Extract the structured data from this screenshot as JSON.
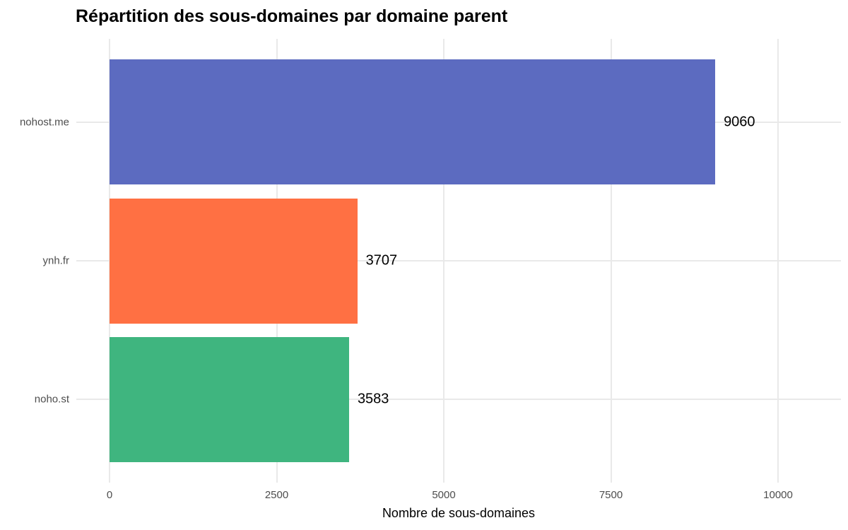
{
  "chart_data": {
    "type": "bar",
    "orientation": "horizontal",
    "title": "Répartition des sous-domaines par domaine parent",
    "xlabel": "Nombre de sous-domaines",
    "ylabel": "",
    "categories": [
      "nohost.me",
      "ynh.fr",
      "noho.st"
    ],
    "values": [
      9060,
      3707,
      3583
    ],
    "value_labels": [
      "9060",
      "3707",
      "3583"
    ],
    "colors": [
      "#5c6bc0",
      "#ff7043",
      "#3fb57f"
    ],
    "xlim": [
      0,
      10000
    ],
    "xticks": [
      0,
      2500,
      5000,
      7500,
      10000
    ],
    "xtick_labels": [
      "0",
      "2500",
      "5000",
      "7500",
      "10000"
    ],
    "grid": true,
    "legend": false,
    "background_color": "#ffffff",
    "gridline_color": "#e9e9e9",
    "axis_text_color": "#4d4d4d",
    "title_color": "#000000",
    "value_label_color": "#000000"
  }
}
